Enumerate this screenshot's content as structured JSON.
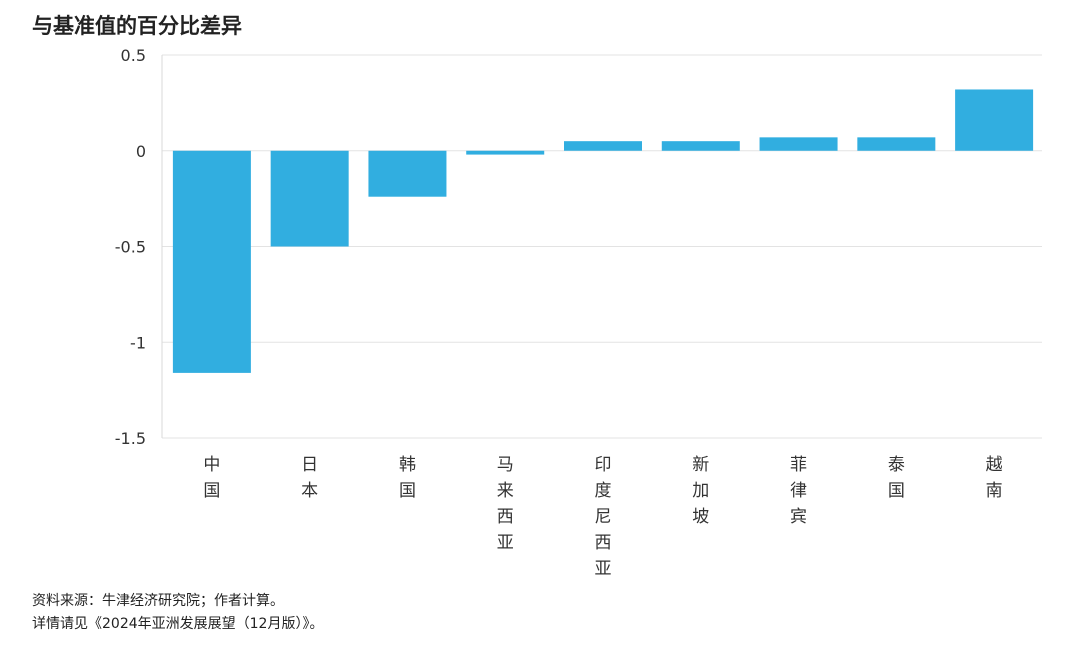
{
  "title": "与基准值的百分比差异",
  "chart_data": {
    "type": "bar",
    "categories": [
      "中国",
      "日本",
      "韩国",
      "马来西亚",
      "印度尼西亚",
      "新加坡",
      "菲律宾",
      "泰国",
      "越南"
    ],
    "values": [
      -1.16,
      -0.5,
      -0.24,
      -0.02,
      0.05,
      0.05,
      0.07,
      0.07,
      0.32
    ],
    "ylim": [
      -1.5,
      0.5
    ],
    "yticks": [
      0.5,
      0,
      -0.5,
      -1,
      -1.5
    ],
    "ytick_labels": [
      "0.5",
      "0",
      "-0.5",
      "-1",
      "-1.5"
    ],
    "grid": true,
    "bar_color": "#31aee0"
  },
  "source": {
    "line1": "资料来源：牛津经济研究院；作者计算。",
    "line2": "详情请见《2024年亚洲发展展望（12月版）》。"
  }
}
